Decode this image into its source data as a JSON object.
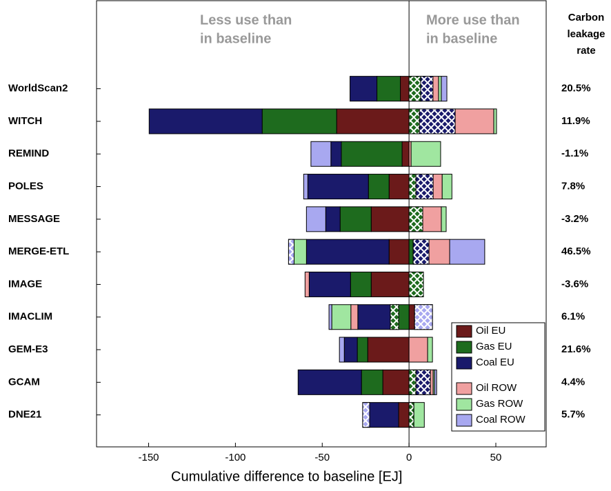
{
  "chart_data": {
    "type": "diverging-stacked-bar",
    "categories": [
      "WorldScan2",
      "WITCH",
      "REMIND",
      "POLES",
      "MESSAGE",
      "MERGE-ETL",
      "IMAGE",
      "IMACLIM",
      "GEM-E3",
      "GCAM",
      "DNE21"
    ],
    "x_label": "Cumulative difference to baseline [EJ]",
    "annotations": [
      [
        "Less use than",
        "in baseline"
      ],
      [
        "More use than",
        "in baseline"
      ]
    ],
    "xlim": [
      -180,
      79
    ],
    "xticks": [
      -150,
      -100,
      -50,
      0,
      50
    ],
    "series": [
      {
        "name": "Oil EU",
        "color": "#6b1a1a",
        "values": [
          -5,
          -41.7,
          -4,
          -11.5,
          -21.8,
          -11.5,
          -21.8,
          3.2,
          -23.8,
          -15.1,
          -6
        ]
      },
      {
        "name": "Gas EU",
        "color": "#1e6b1e",
        "values": [
          -13.5,
          -42.9,
          -35,
          -11.9,
          -17.9,
          2.4,
          -11.9,
          -6,
          -6,
          -12.3,
          null
        ]
      },
      {
        "color": "#1e6b1e",
        "hatch": true,
        "values": [
          6.7,
          6,
          null,
          4,
          7.9,
          null,
          8.3,
          -4.8,
          null,
          4,
          2.8
        ]
      },
      {
        "name": "Coal EU",
        "color": "#1a1a6b",
        "values": [
          -15.5,
          -65.1,
          -6,
          -34.9,
          -8.3,
          -47.6,
          -23.8,
          -18.7,
          -7.5,
          -36.5,
          -16.7
        ]
      },
      {
        "color": "#1a1a6b",
        "hatch": true,
        "values": [
          7.1,
          20.6,
          null,
          9.9,
          null,
          9.1,
          null,
          null,
          null,
          8.3,
          null
        ]
      },
      {
        "name": "Oil ROW",
        "color": "#f0a0a0",
        "values": [
          3.2,
          22.2,
          1.2,
          5.2,
          10.7,
          11.9,
          -2.4,
          -4,
          10.7,
          1.6,
          null
        ]
      },
      {
        "name": "Gas ROW",
        "color": "#a0e6a0",
        "values": [
          1.6,
          1.6,
          17,
          5.6,
          2.8,
          -7.1,
          null,
          -11,
          2.8,
          0.8,
          6
        ]
      },
      {
        "name": "Coal ROW",
        "color": "#a8a8f0",
        "values": [
          3.2,
          null,
          -11.5,
          -2.4,
          -11.1,
          20.2,
          null,
          -1.6,
          -2.8,
          1.2,
          null
        ]
      },
      {
        "color": "#a8a8f0",
        "hatch": true,
        "values": [
          null,
          null,
          null,
          null,
          null,
          -3.2,
          null,
          10.3,
          null,
          null,
          -4
        ]
      }
    ],
    "leakage_title": [
      "Carbon",
      "leakage",
      "rate"
    ],
    "leakage_labels": [
      "20.5%",
      "11.9%",
      "-1.1%",
      "7.8%",
      "-3.2%",
      "46.5%",
      "-3.6%",
      "6.1%",
      "21.6%",
      "4.4%",
      "5.7%"
    ]
  }
}
